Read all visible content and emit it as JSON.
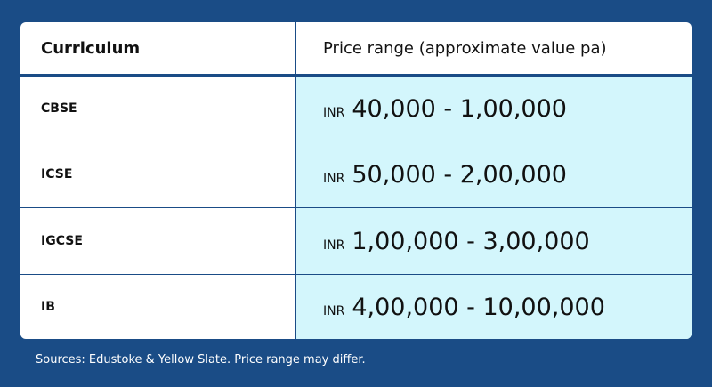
{
  "table": {
    "header": [
      "Curriculum",
      "Price range (approximate value pa)"
    ],
    "rows": [
      {
        "curriculum": "CBSE",
        "currency": "INR",
        "price": "40,000 - 1,00,000"
      },
      {
        "curriculum": "ICSE",
        "currency": "INR",
        "price": "50,000 - 2,00,000"
      },
      {
        "curriculum": "IGCSE",
        "currency": "INR",
        "price": "1,00,000 - 3,00,000"
      },
      {
        "curriculum": "IB",
        "currency": "INR",
        "price": "4,00,000 - 10,00,000"
      }
    ]
  },
  "footer": {
    "note": "Sources: Edustoke & Yellow Slate. Price range may differ."
  }
}
